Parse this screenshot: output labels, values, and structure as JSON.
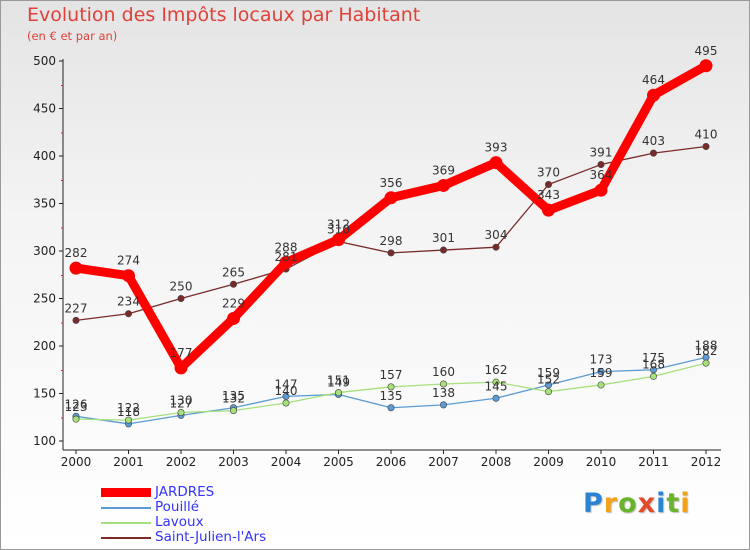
{
  "chart_data": {
    "type": "line",
    "title": "Evolution des Impôts locaux par Habitant",
    "subtitle": "(en € et par an)",
    "x": [
      "2000",
      "2001",
      "2002",
      "2003",
      "2004",
      "2005",
      "2006",
      "2007",
      "2008",
      "2009",
      "2010",
      "2011",
      "2012"
    ],
    "ylim": [
      100,
      500
    ],
    "yticks": [
      "100",
      "150",
      "200",
      "250",
      "300",
      "350",
      "400",
      "450",
      "500"
    ],
    "grid": false,
    "legend_position": "bottom-left",
    "series": [
      {
        "name": "JARDRES",
        "color": "#ff0000",
        "values": [
          282,
          274,
          177,
          229,
          288,
          312,
          356,
          369,
          393,
          343,
          364,
          464,
          495
        ],
        "labels": [
          "282",
          "274",
          "177",
          "229",
          "288",
          "312",
          "356",
          "369",
          "393",
          "343",
          "364",
          "464",
          "495"
        ]
      },
      {
        "name": "Pouillé",
        "color": "#5b9bd5",
        "values": [
          126,
          118,
          127,
          135,
          147,
          149,
          135,
          138,
          145,
          159,
          173,
          175,
          188
        ],
        "labels": [
          "126",
          "118",
          "127",
          "135",
          "147",
          "149",
          "135",
          "138",
          "145",
          "159",
          "173",
          "175",
          "188"
        ]
      },
      {
        "name": "Lavoux",
        "color": "#a6e07a",
        "values": [
          123,
          122,
          130,
          132,
          140,
          151,
          157,
          160,
          162,
          152,
          159,
          168,
          182
        ],
        "labels": [
          "123",
          "122",
          "130",
          "132",
          "140",
          "151",
          "157",
          "160",
          "162",
          "152",
          "159",
          "168",
          "182"
        ]
      },
      {
        "name": "Saint-Julien-l'Ars",
        "color": "#7b2a2a",
        "values": [
          227,
          234,
          250,
          265,
          281,
          310,
          298,
          301,
          304,
          370,
          391,
          403,
          410
        ],
        "labels": [
          "227",
          "234",
          "250",
          "265",
          "281",
          "310",
          "298",
          "301",
          "304",
          "370",
          "391",
          "403",
          "410"
        ]
      }
    ]
  },
  "legend_colors": {
    "JARDRES": "#3333ff",
    "Pouillé": "#3333ff",
    "Lavoux": "#3333ff",
    "Saint-Julien-l'Ars": "#3333ff"
  },
  "logo": {
    "text": "Proxiti"
  }
}
